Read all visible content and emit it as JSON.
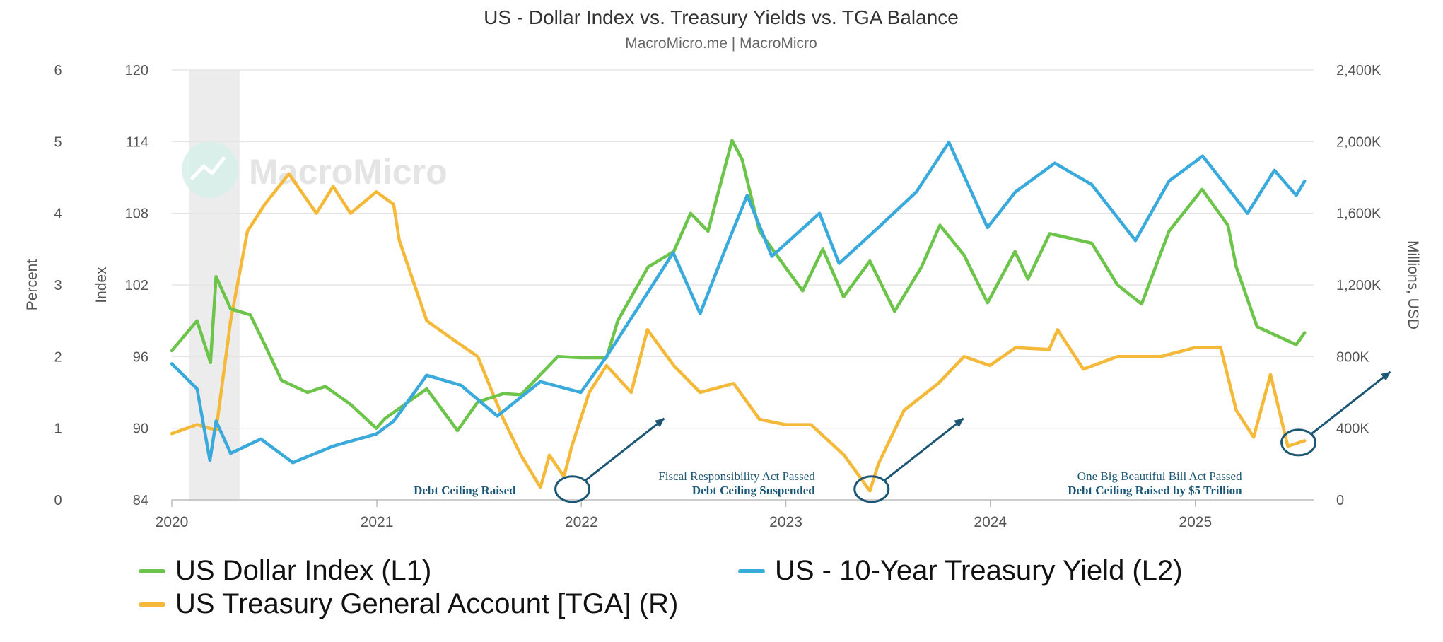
{
  "title": "US - Dollar Index vs. Treasury Yields vs. TGA Balance",
  "subtitle": "MacroMicro.me | MacroMicro",
  "watermark": "MacroMicro",
  "colors": {
    "dxy": "#6cc44a",
    "yield": "#3aaadc",
    "tga": "#f5b93a",
    "annotation": "#1b5674",
    "grid": "#e5e5e5",
    "recession": "#ececec"
  },
  "chart_data": {
    "type": "line",
    "x_tick_labels": [
      "2020",
      "2021",
      "2022",
      "2023",
      "2024",
      "2025"
    ],
    "xlim": [
      "2020-01-01",
      "2025-07-31"
    ],
    "y_axes": {
      "l2": {
        "label": "Percent",
        "range": [
          0,
          6
        ],
        "ticks": [
          "0",
          "1",
          "2",
          "3",
          "4",
          "5",
          "6"
        ]
      },
      "l1": {
        "label": "Index",
        "range": [
          84,
          120
        ],
        "ticks": [
          "84",
          "90",
          "96",
          "102",
          "108",
          "114",
          "120"
        ]
      },
      "r": {
        "label": "Millions, USD",
        "range": [
          0,
          2400
        ],
        "ticks": [
          "0",
          "400K",
          "800K",
          "1,200K",
          "1,600K",
          "2,000K",
          "2,400K"
        ]
      }
    },
    "shaded_periods": [
      {
        "from": "2020-02-01",
        "to": "2020-05-01"
      }
    ],
    "grid": true,
    "legend_position": "bottom",
    "series": [
      {
        "name": "US Dollar Index (L1)",
        "axis": "l1",
        "points": [
          [
            "2020-01-01",
            96.5
          ],
          [
            "2020-02-15",
            99.0
          ],
          [
            "2020-03-10",
            95.5
          ],
          [
            "2020-03-20",
            102.7
          ],
          [
            "2020-04-15",
            100.0
          ],
          [
            "2020-05-20",
            99.5
          ],
          [
            "2020-06-15",
            97.0
          ],
          [
            "2020-07-15",
            94.0
          ],
          [
            "2020-08-30",
            93.0
          ],
          [
            "2020-10-01",
            93.5
          ],
          [
            "2020-11-15",
            92.0
          ],
          [
            "2020-12-31",
            90.0
          ],
          [
            "2021-01-15",
            90.8
          ],
          [
            "2021-03-31",
            93.3
          ],
          [
            "2021-05-25",
            89.8
          ],
          [
            "2021-06-30",
            92.2
          ],
          [
            "2021-08-15",
            92.9
          ],
          [
            "2021-09-15",
            92.8
          ],
          [
            "2021-11-20",
            96.0
          ],
          [
            "2021-12-31",
            95.9
          ],
          [
            "2022-02-15",
            95.9
          ],
          [
            "2022-03-07",
            99.0
          ],
          [
            "2022-04-30",
            103.5
          ],
          [
            "2022-06-15",
            104.8
          ],
          [
            "2022-07-15",
            108.0
          ],
          [
            "2022-08-15",
            106.5
          ],
          [
            "2022-09-27",
            114.1
          ],
          [
            "2022-10-15",
            112.5
          ],
          [
            "2022-11-15",
            106.5
          ],
          [
            "2022-12-31",
            103.5
          ],
          [
            "2023-01-31",
            101.5
          ],
          [
            "2023-03-08",
            105.0
          ],
          [
            "2023-04-14",
            101.0
          ],
          [
            "2023-05-31",
            104.0
          ],
          [
            "2023-07-14",
            99.8
          ],
          [
            "2023-08-31",
            103.5
          ],
          [
            "2023-10-03",
            107.0
          ],
          [
            "2023-11-15",
            104.5
          ],
          [
            "2023-12-27",
            100.5
          ],
          [
            "2024-02-14",
            104.8
          ],
          [
            "2024-03-08",
            102.5
          ],
          [
            "2024-04-16",
            106.3
          ],
          [
            "2024-06-30",
            105.5
          ],
          [
            "2024-08-15",
            102.0
          ],
          [
            "2024-09-27",
            100.4
          ],
          [
            "2024-11-15",
            106.5
          ],
          [
            "2025-01-13",
            110.0
          ],
          [
            "2025-02-28",
            107.0
          ],
          [
            "2025-03-15",
            103.5
          ],
          [
            "2025-04-21",
            98.5
          ],
          [
            "2025-06-30",
            97.0
          ],
          [
            "2025-07-15",
            98.0
          ]
        ]
      },
      {
        "name": "US - 10-Year Treasury Yield (L2)",
        "axis": "l2",
        "points": [
          [
            "2020-01-01",
            1.9
          ],
          [
            "2020-02-15",
            1.55
          ],
          [
            "2020-03-09",
            0.55
          ],
          [
            "2020-03-20",
            1.1
          ],
          [
            "2020-04-15",
            0.65
          ],
          [
            "2020-06-08",
            0.85
          ],
          [
            "2020-08-04",
            0.52
          ],
          [
            "2020-10-15",
            0.75
          ],
          [
            "2020-12-31",
            0.92
          ],
          [
            "2021-01-31",
            1.1
          ],
          [
            "2021-03-31",
            1.74
          ],
          [
            "2021-05-31",
            1.6
          ],
          [
            "2021-08-04",
            1.17
          ],
          [
            "2021-10-20",
            1.65
          ],
          [
            "2021-12-31",
            1.5
          ],
          [
            "2022-02-15",
            2.0
          ],
          [
            "2022-04-30",
            2.9
          ],
          [
            "2022-06-14",
            3.45
          ],
          [
            "2022-08-01",
            2.6
          ],
          [
            "2022-09-15",
            3.5
          ],
          [
            "2022-10-24",
            4.25
          ],
          [
            "2022-12-07",
            3.4
          ],
          [
            "2023-03-02",
            4.0
          ],
          [
            "2023-04-06",
            3.3
          ],
          [
            "2023-06-15",
            3.8
          ],
          [
            "2023-08-22",
            4.3
          ],
          [
            "2023-10-19",
            4.99
          ],
          [
            "2023-12-27",
            3.8
          ],
          [
            "2024-02-15",
            4.3
          ],
          [
            "2024-04-25",
            4.7
          ],
          [
            "2024-06-30",
            4.4
          ],
          [
            "2024-09-16",
            3.62
          ],
          [
            "2024-11-15",
            4.45
          ],
          [
            "2025-01-14",
            4.8
          ],
          [
            "2025-04-04",
            4.0
          ],
          [
            "2025-05-22",
            4.6
          ],
          [
            "2025-06-30",
            4.25
          ],
          [
            "2025-07-15",
            4.45
          ]
        ]
      },
      {
        "name": "US Treasury General Account [TGA] (R)",
        "axis": "r",
        "points": [
          [
            "2020-01-01",
            370
          ],
          [
            "2020-02-15",
            420
          ],
          [
            "2020-03-20",
            390
          ],
          [
            "2020-04-15",
            1000
          ],
          [
            "2020-05-15",
            1500
          ],
          [
            "2020-06-15",
            1650
          ],
          [
            "2020-07-28",
            1820
          ],
          [
            "2020-09-15",
            1600
          ],
          [
            "2020-10-15",
            1750
          ],
          [
            "2020-11-15",
            1600
          ],
          [
            "2020-12-31",
            1720
          ],
          [
            "2021-01-31",
            1650
          ],
          [
            "2021-02-10",
            1450
          ],
          [
            "2021-03-31",
            1000
          ],
          [
            "2021-05-15",
            900
          ],
          [
            "2021-06-30",
            800
          ],
          [
            "2021-08-15",
            450
          ],
          [
            "2021-09-15",
            250
          ],
          [
            "2021-10-20",
            70
          ],
          [
            "2021-11-05",
            250
          ],
          [
            "2021-12-01",
            130
          ],
          [
            "2021-12-15",
            300
          ],
          [
            "2022-01-15",
            600
          ],
          [
            "2022-02-15",
            750
          ],
          [
            "2022-03-31",
            600
          ],
          [
            "2022-04-29",
            950
          ],
          [
            "2022-06-15",
            750
          ],
          [
            "2022-08-01",
            600
          ],
          [
            "2022-09-30",
            650
          ],
          [
            "2022-11-15",
            450
          ],
          [
            "2022-12-31",
            420
          ],
          [
            "2023-02-15",
            420
          ],
          [
            "2023-04-15",
            250
          ],
          [
            "2023-05-31",
            50
          ],
          [
            "2023-06-15",
            200
          ],
          [
            "2023-07-31",
            500
          ],
          [
            "2023-09-30",
            650
          ],
          [
            "2023-11-15",
            800
          ],
          [
            "2023-12-31",
            750
          ],
          [
            "2024-02-15",
            850
          ],
          [
            "2024-04-15",
            840
          ],
          [
            "2024-04-30",
            950
          ],
          [
            "2024-06-15",
            730
          ],
          [
            "2024-08-15",
            800
          ],
          [
            "2024-10-31",
            800
          ],
          [
            "2024-12-31",
            850
          ],
          [
            "2025-02-15",
            850
          ],
          [
            "2025-03-15",
            500
          ],
          [
            "2025-04-15",
            350
          ],
          [
            "2025-05-15",
            700
          ],
          [
            "2025-06-15",
            300
          ],
          [
            "2025-07-15",
            330
          ]
        ]
      }
    ],
    "annotations": [
      {
        "lines": [
          "Debt Ceiling Raised"
        ],
        "date": "2021-12-16",
        "value": 60
      },
      {
        "lines": [
          "Fiscal Responsibility Act Passed",
          "Debt Ceiling Suspended"
        ],
        "date": "2023-06-03",
        "value": 60
      },
      {
        "lines": [
          "One Big Beautiful Bill Act Passed",
          "Debt Ceiling Raised by $5 Trillion"
        ],
        "date": "2025-07-04",
        "value": 320
      }
    ]
  }
}
